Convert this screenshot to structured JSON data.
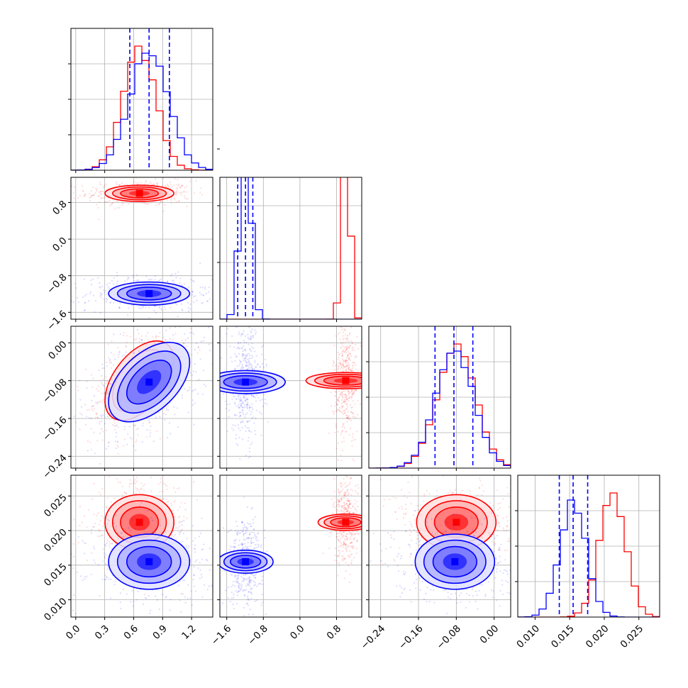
{
  "chart_data": {
    "type": "corner",
    "title": "",
    "grid": true,
    "legend": "none",
    "quantile_line_color": "#0000ff",
    "params": [
      {
        "ticks": [
          0.0,
          0.3,
          0.6,
          0.9,
          1.2
        ],
        "tick_labels": [
          "0.0",
          "0.3",
          "0.6",
          "0.9",
          "1.2"
        ],
        "range": [
          -0.05,
          1.42
        ]
      },
      {
        "ticks": [
          -1.6,
          -0.8,
          0.0,
          0.8
        ],
        "tick_labels": [
          "−1.6",
          "−0.8",
          "0.0",
          "0.8"
        ],
        "range": [
          -1.75,
          1.35
        ]
      },
      {
        "ticks": [
          -0.24,
          -0.16,
          -0.08,
          0.0
        ],
        "tick_labels": [
          "−0.24",
          "−0.16",
          "−0.08",
          "0.00"
        ],
        "range": [
          -0.265,
          0.035
        ]
      },
      {
        "ticks": [
          0.01,
          0.015,
          0.02,
          0.025
        ],
        "tick_labels": [
          "0.010",
          "0.015",
          "0.020",
          "0.025"
        ],
        "range": [
          0.0075,
          0.028
        ]
      }
    ],
    "series": [
      {
        "color": "#ff0000",
        "mean": [
          0.66,
          1.0,
          -0.08,
          0.0212
        ],
        "std": [
          0.17,
          0.085,
          0.04,
          0.0019
        ],
        "corr": {
          "0-2": 0.5
        },
        "quantiles": []
      },
      {
        "color": "#0000ff",
        "mean": [
          0.76,
          -1.19,
          -0.083,
          0.0155
        ],
        "std": [
          0.2,
          0.12,
          0.04,
          0.0019
        ],
        "corr": {
          "0-2": 0.5
        },
        "quantiles": [
          [
            0.56,
            0.76,
            0.97
          ],
          [
            -1.36,
            -1.19,
            -1.03
          ],
          [
            -0.125,
            -0.085,
            -0.045
          ],
          [
            0.0135,
            0.0155,
            0.0176
          ]
        ]
      }
    ]
  }
}
